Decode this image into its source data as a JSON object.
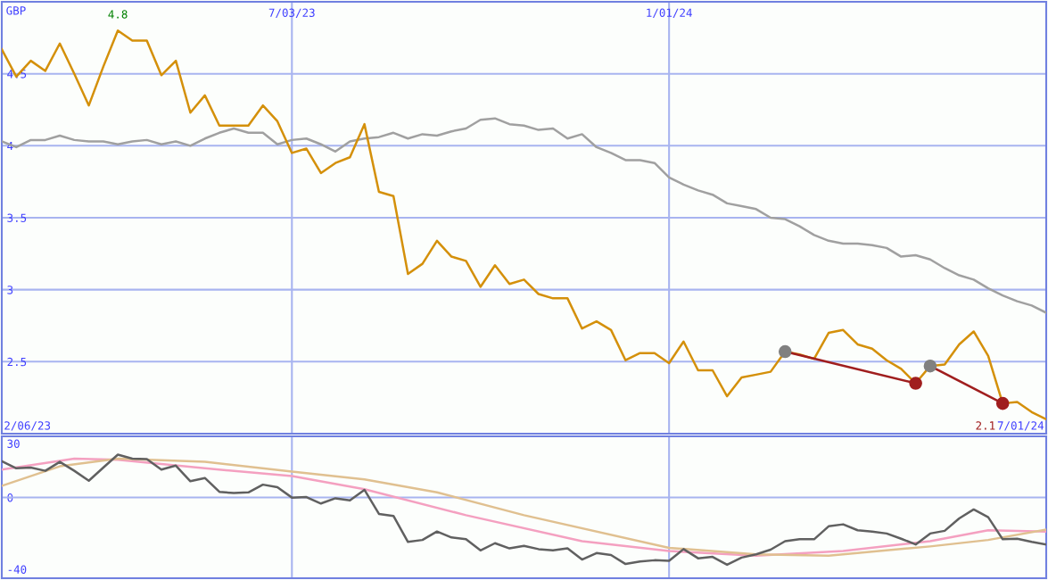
{
  "chart_data": [
    {
      "type": "line",
      "ylabel": "GBP",
      "grid": true,
      "x": [
        "2023-02-13",
        "2023-02-20",
        "2023-02-27",
        "2023-03-06",
        "2023-03-13",
        "2023-03-20",
        "2023-03-27",
        "2023-04-03",
        "2023-04-10",
        "2023-04-17",
        "2023-04-24",
        "2023-05-01",
        "2023-05-08",
        "2023-05-15",
        "2023-05-22",
        "2023-05-29",
        "2023-06-05",
        "2023-06-12",
        "2023-06-19",
        "2023-06-26",
        "2023-07-03",
        "2023-07-10",
        "2023-07-17",
        "2023-07-24",
        "2023-07-31",
        "2023-08-07",
        "2023-08-14",
        "2023-08-21",
        "2023-08-28",
        "2023-09-04",
        "2023-09-11",
        "2023-09-18",
        "2023-09-25",
        "2023-10-02",
        "2023-10-09",
        "2023-10-16",
        "2023-10-23",
        "2023-10-30",
        "2023-11-06",
        "2023-11-13",
        "2023-11-20",
        "2023-11-27",
        "2023-12-04",
        "2023-12-11",
        "2023-12-18",
        "2023-12-25",
        "2024-01-01",
        "2024-01-08",
        "2024-01-15",
        "2024-01-22",
        "2024-01-29",
        "2024-02-05",
        "2024-02-12",
        "2024-02-19",
        "2024-02-26",
        "2024-03-04",
        "2024-03-11",
        "2024-03-18",
        "2024-03-25",
        "2024-04-01",
        "2024-04-08",
        "2024-04-15",
        "2024-04-22",
        "2024-04-29",
        "2024-05-06",
        "2024-05-13",
        "2024-05-20",
        "2024-05-27",
        "2024-06-03",
        "2024-06-10",
        "2024-06-17",
        "2024-06-24",
        "2024-07-01"
      ],
      "xlim": [
        "2023-02-13",
        "2024-07-01"
      ],
      "xticks": [
        {
          "value": "2023-07-03",
          "label": "7/03/23"
        },
        {
          "value": "2024-01-01",
          "label": "1/01/24"
        }
      ],
      "ylim": [
        2,
        5
      ],
      "yticks": [
        2.5,
        3,
        3.5,
        4,
        4.5
      ],
      "series": [
        {
          "color": "#a0a0a0",
          "values": [
            4.03,
            3.99,
            4.04,
            4.04,
            4.07,
            4.04,
            4.03,
            4.03,
            4.01,
            4.03,
            4.04,
            4.01,
            4.03,
            4.0,
            4.05,
            4.09,
            4.12,
            4.09,
            4.09,
            4.01,
            4.04,
            4.05,
            4.01,
            3.96,
            4.03,
            4.05,
            4.06,
            4.09,
            4.05,
            4.08,
            4.07,
            4.1,
            4.12,
            4.18,
            4.19,
            4.15,
            4.14,
            4.11,
            4.12,
            4.05,
            4.08,
            3.99,
            3.95,
            3.9,
            3.9,
            3.88,
            3.78,
            3.73,
            3.69,
            3.66,
            3.6,
            3.58,
            3.56,
            3.5,
            3.49,
            3.44,
            3.38,
            3.34,
            3.32,
            3.32,
            3.31,
            3.29,
            3.23,
            3.24,
            3.21,
            3.15,
            3.1,
            3.07,
            3.01,
            2.96,
            2.92,
            2.89,
            2.84
          ]
        },
        {
          "color": "#d4900a",
          "values": [
            4.67,
            4.48,
            4.59,
            4.52,
            4.71,
            4.5,
            4.28,
            4.55,
            4.8,
            4.73,
            4.73,
            4.49,
            4.59,
            4.23,
            4.35,
            4.14,
            4.14,
            4.14,
            4.28,
            4.17,
            3.95,
            3.98,
            3.81,
            3.88,
            3.92,
            4.15,
            3.68,
            3.65,
            3.11,
            3.18,
            3.34,
            3.23,
            3.2,
            3.02,
            3.17,
            3.04,
            3.07,
            2.97,
            2.94,
            2.94,
            2.73,
            2.78,
            2.72,
            2.51,
            2.56,
            2.56,
            2.49,
            2.64,
            2.44,
            2.44,
            2.26,
            2.39,
            2.41,
            2.43,
            2.57,
            2.55,
            2.52,
            2.7,
            2.72,
            2.62,
            2.59,
            2.51,
            2.45,
            2.35,
            2.47,
            2.48,
            2.62,
            2.71,
            2.54,
            2.21,
            2.22,
            2.15,
            2.1
          ]
        },
        {
          "color": "#a01e1e",
          "x": [
            "2024-02-26",
            "2024-04-29"
          ],
          "values": [
            2.57,
            2.35
          ]
        },
        {
          "color": "#a01e1e",
          "x": [
            "2024-05-06",
            "2024-06-10"
          ],
          "values": [
            2.47,
            2.21
          ]
        },
        {
          "type": "scatter",
          "color": "#808080",
          "x": [
            "2024-02-26",
            "2024-05-06"
          ],
          "values": [
            2.57,
            2.47
          ],
          "marker": "circle"
        },
        {
          "type": "scatter",
          "color": "#a01e1e",
          "x": [
            "2024-04-29",
            "2024-06-10"
          ],
          "values": [
            2.35,
            2.21
          ],
          "marker": "circle"
        }
      ],
      "annotations": [
        {
          "text": "4.8",
          "x": "2023-04-10",
          "y": 4.8
        },
        "2/06/23",
        "2.1",
        "7/01/24"
      ]
    },
    {
      "type": "line",
      "tick_labels": "y",
      "x": [
        "2023-02-13",
        "2023-02-20",
        "2023-02-27",
        "2023-03-06",
        "2023-03-13",
        "2023-03-20",
        "2023-03-27",
        "2023-04-03",
        "2023-04-10",
        "2023-04-17",
        "2023-04-24",
        "2023-05-01",
        "2023-05-08",
        "2023-05-15",
        "2023-05-22",
        "2023-05-29",
        "2023-06-05",
        "2023-06-12",
        "2023-06-19",
        "2023-06-26",
        "2023-07-03",
        "2023-07-10",
        "2023-07-17",
        "2023-07-24",
        "2023-07-31",
        "2023-08-07",
        "2023-08-14",
        "2023-08-21",
        "2023-08-28",
        "2023-09-04",
        "2023-09-11",
        "2023-09-18",
        "2023-09-25",
        "2023-10-02",
        "2023-10-09",
        "2023-10-16",
        "2023-10-23",
        "2023-10-30",
        "2023-11-06",
        "2023-11-13",
        "2023-11-20",
        "2023-11-27",
        "2023-12-04",
        "2023-12-11",
        "2023-12-18",
        "2023-12-25",
        "2024-01-01",
        "2024-01-08",
        "2024-01-15",
        "2024-01-22",
        "2024-01-29",
        "2024-02-05",
        "2024-02-12",
        "2024-02-19",
        "2024-02-26",
        "2024-03-04",
        "2024-03-11",
        "2024-03-18",
        "2024-03-25",
        "2024-04-01",
        "2024-04-08",
        "2024-04-15",
        "2024-04-22",
        "2024-04-29",
        "2024-05-06",
        "2024-05-13",
        "2024-05-20",
        "2024-05-27",
        "2024-06-03",
        "2024-06-10",
        "2024-06-17",
        "2024-06-24",
        "2024-07-01"
      ],
      "xlim": [
        "2023-02-13",
        "2024-07-01"
      ],
      "ylim": [
        -45,
        34
      ],
      "yticks": [
        30,
        0,
        -40
      ],
      "ref_lines": [
        {
          "axis": "y",
          "value": 0,
          "label": null,
          "color": "#a8b4f0"
        },
        {
          "axis": "x",
          "value": "2023-07-03",
          "label": null,
          "color": "#a8b4f0"
        },
        {
          "axis": "x",
          "value": "2024-01-01",
          "label": null,
          "color": "#a8b4f0"
        }
      ],
      "series": [
        {
          "color": "#f4a0c0",
          "x": [
            "2023-02-13",
            "2023-03-20",
            "2023-04-10",
            "2023-05-22",
            "2023-07-03",
            "2023-08-07",
            "2023-09-25",
            "2023-11-20",
            "2024-01-01",
            "2024-02-12",
            "2024-03-25",
            "2024-05-06",
            "2024-06-03",
            "2024-07-01"
          ],
          "values": [
            15.5,
            21.6,
            20.9,
            16.2,
            11.9,
            4.6,
            -9.9,
            -24.4,
            -29.9,
            -32.4,
            -29.9,
            -24.4,
            -18.3,
            -19.0
          ]
        },
        {
          "color": "#e0c090",
          "x": [
            "2023-02-13",
            "2023-03-13",
            "2023-04-10",
            "2023-05-22",
            "2023-07-03",
            "2023-08-07",
            "2023-09-11",
            "2023-10-23",
            "2024-01-01",
            "2024-02-12",
            "2024-03-18",
            "2024-05-06",
            "2024-06-03",
            "2024-07-01"
          ],
          "values": [
            6.4,
            17.3,
            21.6,
            19.8,
            14.4,
            10.0,
            2.8,
            -9.9,
            -28.1,
            -31.7,
            -32.4,
            -27.3,
            -23.7,
            -17.9
          ]
        },
        {
          "color": "#606060",
          "values": [
            20.2,
            16.2,
            16.6,
            14.8,
            19.8,
            14.8,
            9.3,
            16.6,
            23.8,
            21.6,
            21.3,
            15.5,
            17.7,
            9.0,
            10.8,
            3.1,
            2.4,
            2.8,
            7.1,
            5.7,
            -0.1,
            0.2,
            -3.4,
            -0.5,
            -1.6,
            4.2,
            -9.2,
            -10.3,
            -24.8,
            -23.7,
            -19.0,
            -22.3,
            -23.3,
            -29.5,
            -25.5,
            -28.4,
            -27.0,
            -28.8,
            -29.5,
            -28.4,
            -34.6,
            -31.0,
            -32.1,
            -37.1,
            -35.7,
            -35.0,
            -35.3,
            -28.8,
            -33.9,
            -33.1,
            -37.5,
            -33.5,
            -31.7,
            -29.1,
            -24.4,
            -23.3,
            -23.3,
            -16.1,
            -15.0,
            -18.3,
            -19.0,
            -20.1,
            -23.0,
            -26.2,
            -20.1,
            -18.6,
            -11.7,
            -6.7,
            -11.0,
            -23.3,
            -23.0,
            -24.8,
            -26.2
          ]
        }
      ]
    }
  ]
}
